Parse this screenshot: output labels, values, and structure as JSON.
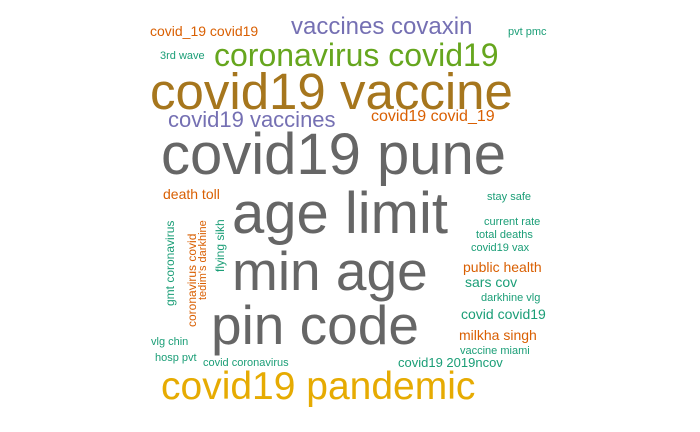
{
  "palette": {
    "gray": "#666666",
    "gold": "#a6761d",
    "yellow": "#e6ab02",
    "green": "#66a61e",
    "purple": "#7570b3",
    "orange": "#d95f02",
    "teal": "#1b9e77"
  },
  "words": [
    {
      "text": "covid_19 covid19",
      "color": "orange"
    },
    {
      "text": "vaccines covaxin",
      "color": "purple"
    },
    {
      "text": "pvt pmc",
      "color": "teal"
    },
    {
      "text": "3rd wave",
      "color": "teal"
    },
    {
      "text": "coronavirus covid19",
      "color": "green"
    },
    {
      "text": "covid19 vaccine",
      "color": "gold"
    },
    {
      "text": "covid19 vaccines",
      "color": "purple"
    },
    {
      "text": "covid19 covid_19",
      "color": "orange"
    },
    {
      "text": "covid19 pune",
      "color": "gray"
    },
    {
      "text": "death toll",
      "color": "orange"
    },
    {
      "text": "stay safe",
      "color": "teal"
    },
    {
      "text": "age limit",
      "color": "gray"
    },
    {
      "text": "current rate",
      "color": "teal"
    },
    {
      "text": "total deaths",
      "color": "teal"
    },
    {
      "text": "covid19 vax",
      "color": "teal"
    },
    {
      "text": "min age",
      "color": "gray"
    },
    {
      "text": "public health",
      "color": "orange"
    },
    {
      "text": "sars cov",
      "color": "teal"
    },
    {
      "text": "darkhine vlg",
      "color": "teal"
    },
    {
      "text": "pin code",
      "color": "gray"
    },
    {
      "text": "covid covid19",
      "color": "teal"
    },
    {
      "text": "milkha singh",
      "color": "orange"
    },
    {
      "text": "vlg chin",
      "color": "teal"
    },
    {
      "text": "vaccine miami",
      "color": "teal"
    },
    {
      "text": "hosp pvt",
      "color": "teal"
    },
    {
      "text": "covid coronavirus",
      "color": "teal"
    },
    {
      "text": "covid19 2019ncov",
      "color": "teal"
    },
    {
      "text": "covid19 pandemic",
      "color": "yellow"
    },
    {
      "text": "gmt coronavirus",
      "color": "teal"
    },
    {
      "text": "coronavirus covid",
      "color": "orange"
    },
    {
      "text": "tedim's darkhine",
      "color": "orange"
    },
    {
      "text": "flying sikh",
      "color": "teal"
    }
  ]
}
